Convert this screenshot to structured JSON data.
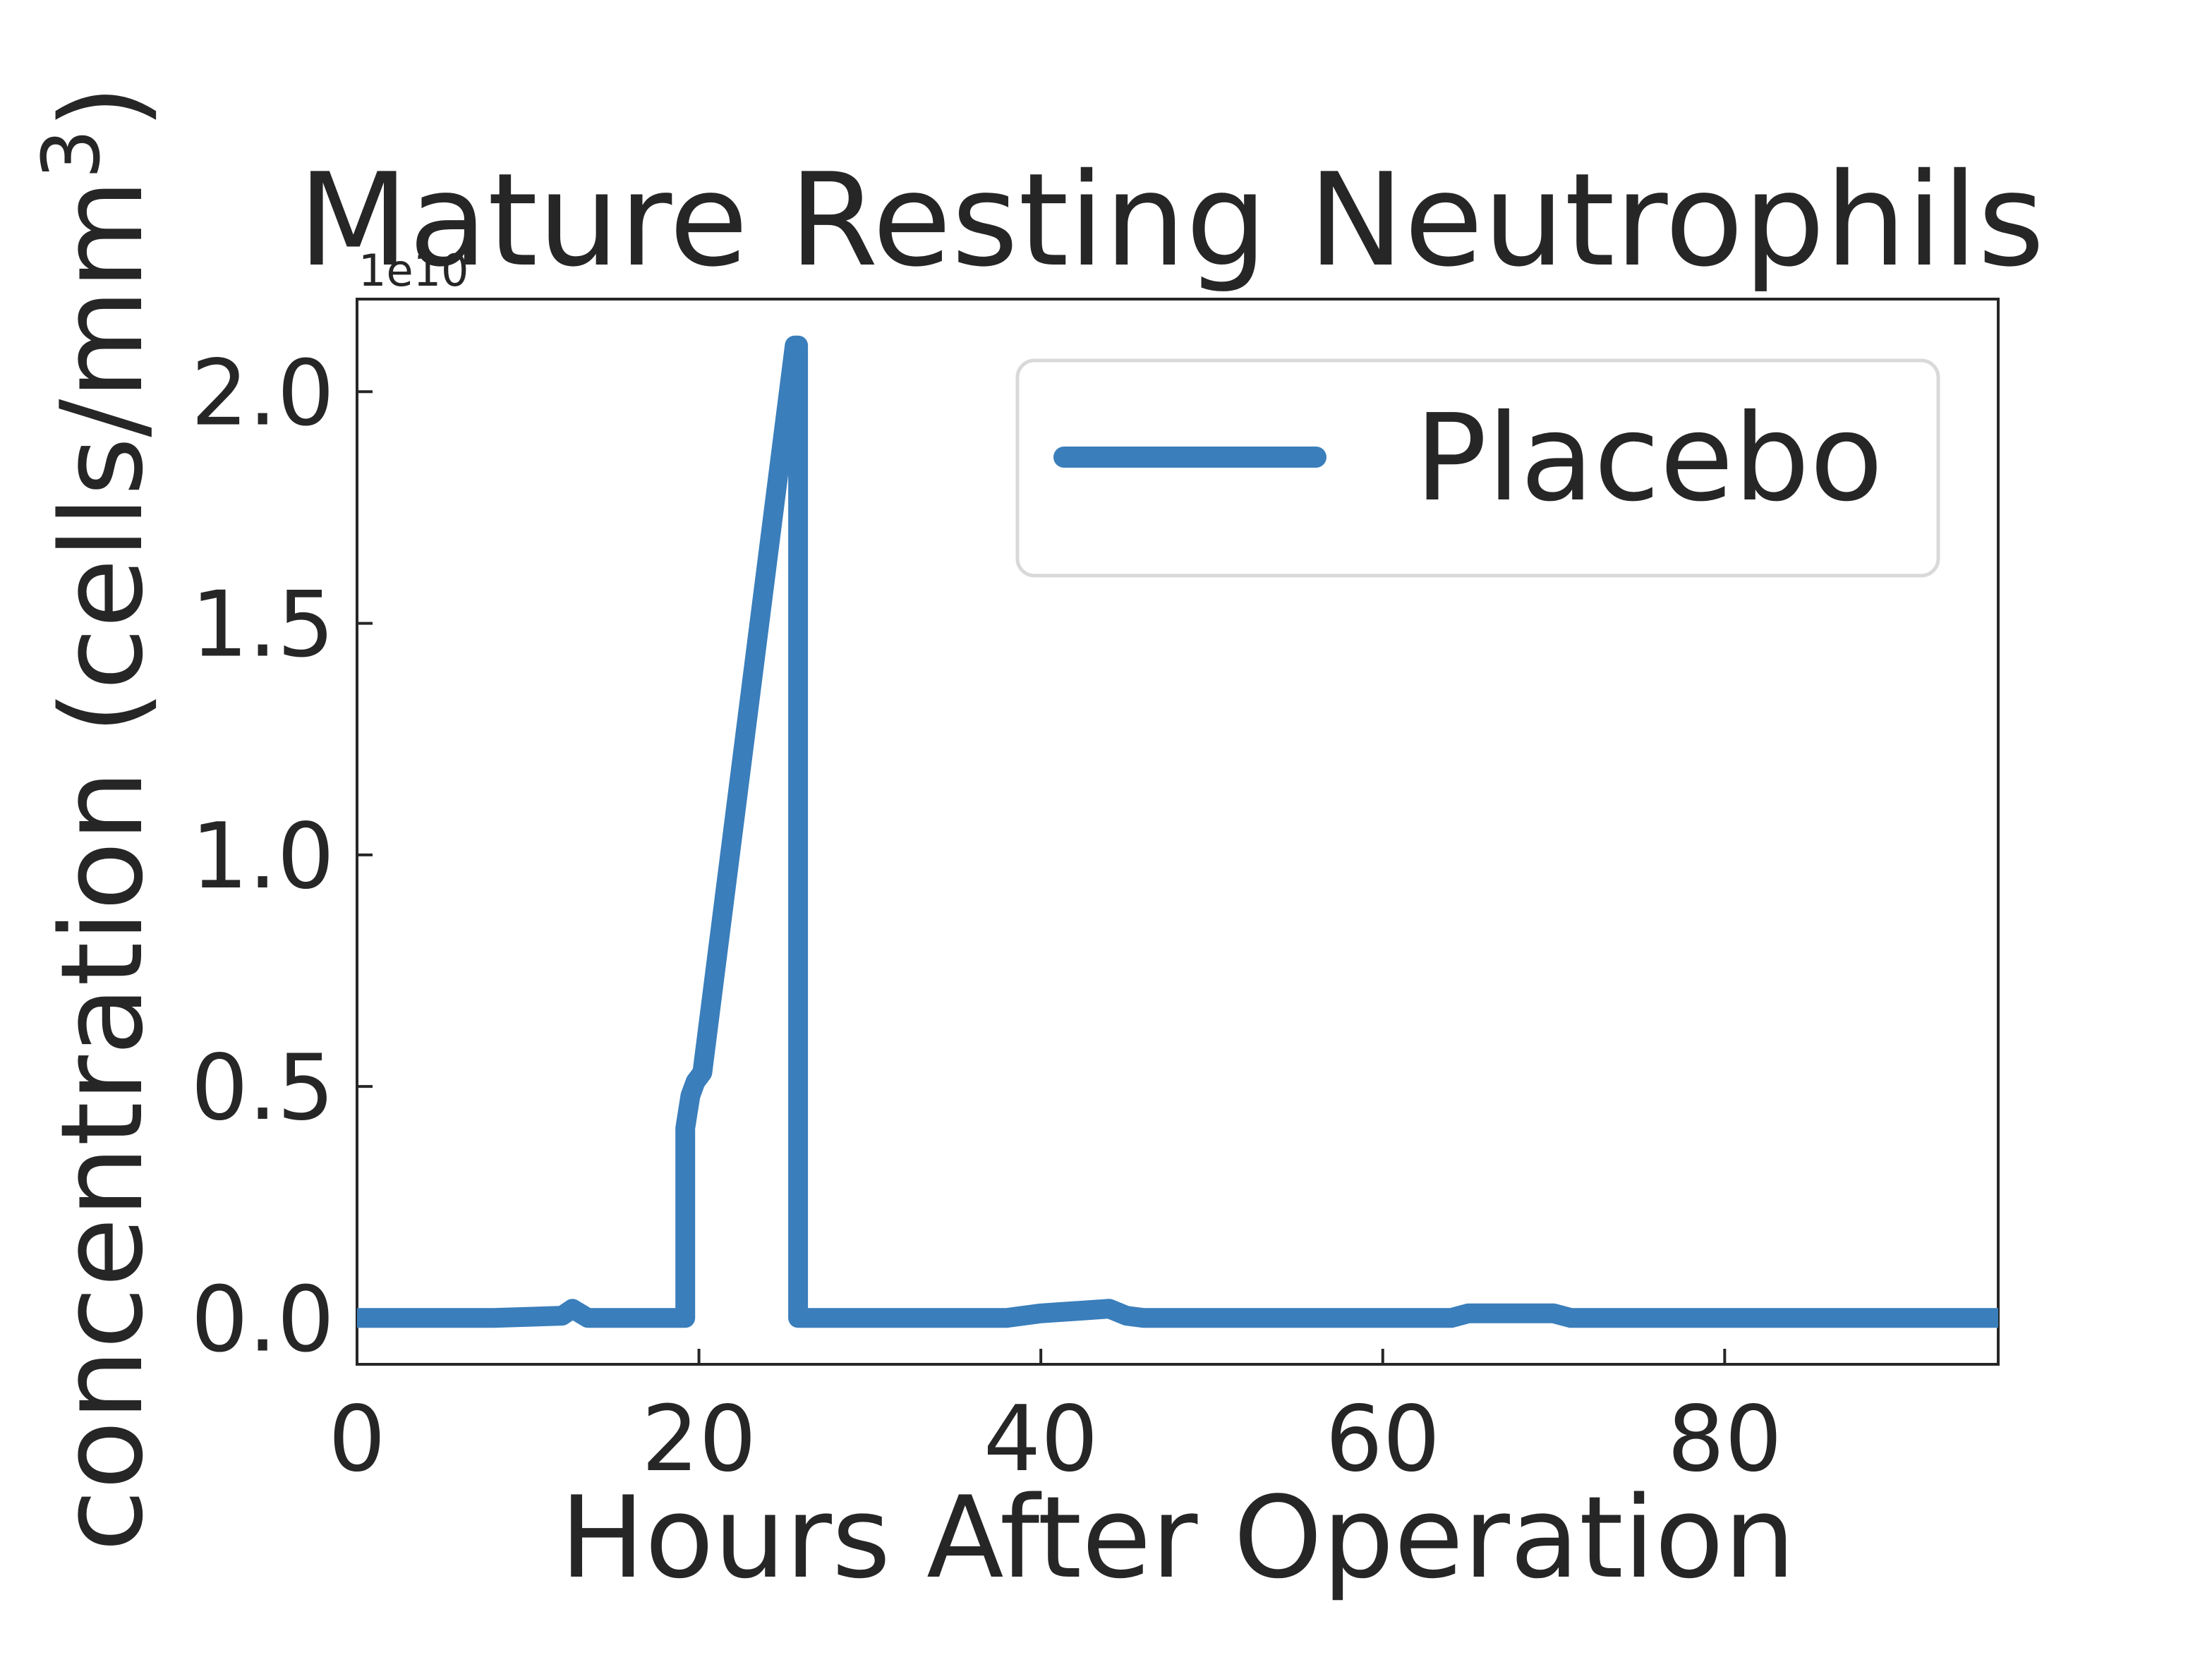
{
  "chart_data": {
    "type": "line",
    "title": "Mature Resting Neutrophils",
    "xlabel": "Hours After Operation",
    "ylabel": "concentration (cells/mm",
    "ylabel_superscript": "3",
    "ylabel_close": ")",
    "offset_text": "1e10",
    "xlim": [
      0,
      96
    ],
    "ylim": [
      -0.1,
      2.2
    ],
    "xticks": [
      0,
      20,
      40,
      60,
      80
    ],
    "xtick_labels": [
      "0",
      "20",
      "40",
      "60",
      "80"
    ],
    "yticks": [
      0.0,
      0.5,
      1.0,
      1.5,
      2.0
    ],
    "ytick_labels": [
      "0.0",
      "0.5",
      "1.0",
      "1.5",
      "2.0"
    ],
    "grid": false,
    "legend_position": "top-right",
    "series": [
      {
        "name": "Placebo",
        "color": "#3a7ebb",
        "x": [
          0,
          8,
          12,
          12.6,
          13.5,
          19.2,
          19.2,
          19.5,
          19.8,
          20.2,
          25.6,
          25.8,
          25.8,
          38,
          40,
          42,
          44,
          45,
          46,
          51,
          64,
          65,
          70,
          71,
          96
        ],
        "y": [
          0.0,
          0.0,
          0.005,
          0.02,
          0.0,
          0.0,
          0.41,
          0.48,
          0.51,
          0.53,
          2.1,
          2.1,
          0.0,
          0.0,
          0.01,
          0.015,
          0.02,
          0.005,
          0.0,
          0.0,
          0.0,
          0.01,
          0.01,
          0.0,
          0.0
        ]
      }
    ]
  }
}
